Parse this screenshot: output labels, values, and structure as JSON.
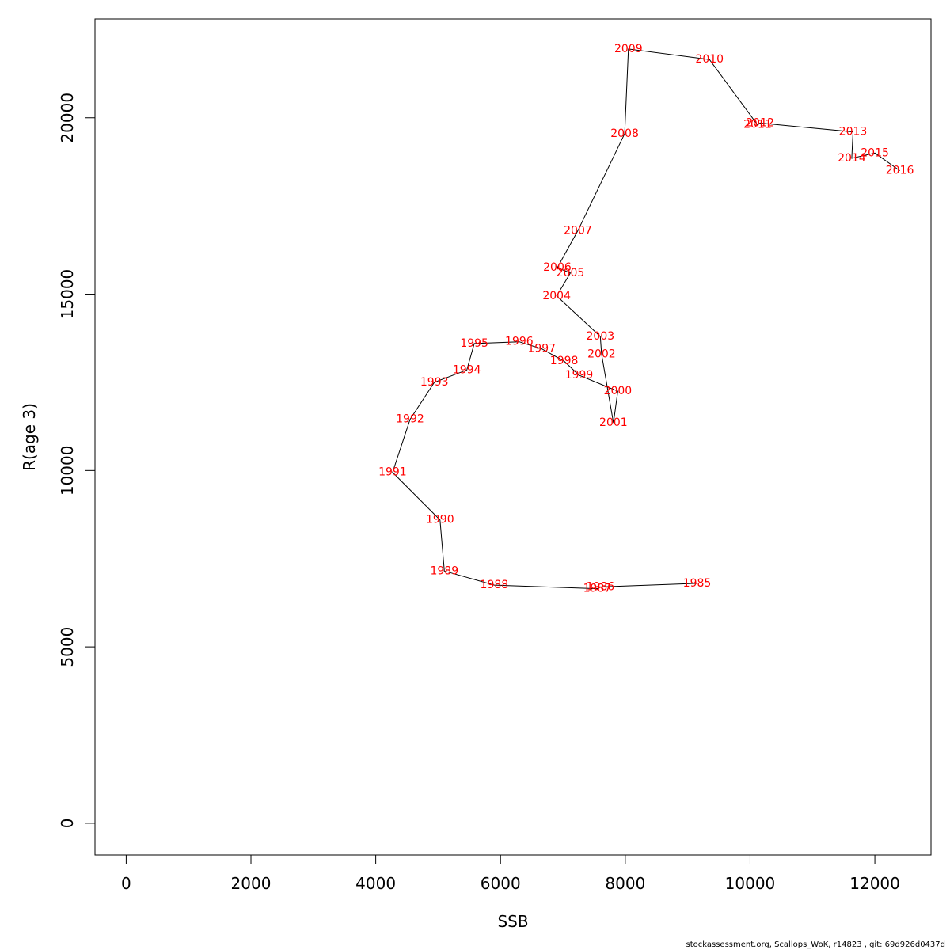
{
  "chart_data": {
    "type": "line",
    "xlabel": "SSB",
    "ylabel": "R(age 3)",
    "xlim": [
      -500,
      12900
    ],
    "ylim": [
      -900,
      22800
    ],
    "x_ticks": [
      0,
      2000,
      4000,
      6000,
      8000,
      10000,
      12000
    ],
    "y_ticks": [
      0,
      5000,
      10000,
      15000,
      20000
    ],
    "grid": false,
    "label_color": "#ff0000",
    "line_color": "#000000",
    "points": [
      {
        "year": "1985",
        "x": 9150,
        "y": 6800
      },
      {
        "year": "1986",
        "x": 7600,
        "y": 6700
      },
      {
        "year": "1987",
        "x": 7550,
        "y": 6650
      },
      {
        "year": "1988",
        "x": 5900,
        "y": 6750
      },
      {
        "year": "1989",
        "x": 5100,
        "y": 7150
      },
      {
        "year": "1990",
        "x": 5030,
        "y": 8600
      },
      {
        "year": "1991",
        "x": 4270,
        "y": 9950
      },
      {
        "year": "1992",
        "x": 4550,
        "y": 11450
      },
      {
        "year": "1993",
        "x": 4940,
        "y": 12500
      },
      {
        "year": "1994",
        "x": 5460,
        "y": 12850
      },
      {
        "year": "1995",
        "x": 5580,
        "y": 13600
      },
      {
        "year": "1996",
        "x": 6300,
        "y": 13650
      },
      {
        "year": "1997",
        "x": 6660,
        "y": 13450
      },
      {
        "year": "1998",
        "x": 7020,
        "y": 13100
      },
      {
        "year": "1999",
        "x": 7260,
        "y": 12700
      },
      {
        "year": "2000",
        "x": 7880,
        "y": 12250
      },
      {
        "year": "2001",
        "x": 7810,
        "y": 11350
      },
      {
        "year": "2002",
        "x": 7620,
        "y": 13300
      },
      {
        "year": "2003",
        "x": 7600,
        "y": 13800
      },
      {
        "year": "2004",
        "x": 6900,
        "y": 14950
      },
      {
        "year": "2005",
        "x": 7120,
        "y": 15600
      },
      {
        "year": "2006",
        "x": 6910,
        "y": 15750
      },
      {
        "year": "2007",
        "x": 7240,
        "y": 16800
      },
      {
        "year": "2008",
        "x": 7990,
        "y": 19550
      },
      {
        "year": "2009",
        "x": 8050,
        "y": 21950
      },
      {
        "year": "2010",
        "x": 9350,
        "y": 21650
      },
      {
        "year": "2011",
        "x": 10120,
        "y": 19800
      },
      {
        "year": "2012",
        "x": 10160,
        "y": 19850
      },
      {
        "year": "2013",
        "x": 11650,
        "y": 19600
      },
      {
        "year": "2014",
        "x": 11630,
        "y": 18850
      },
      {
        "year": "2015",
        "x": 12000,
        "y": 19000
      },
      {
        "year": "2016",
        "x": 12400,
        "y": 18500
      }
    ]
  },
  "footer": {
    "note": "stockassessment.org, Scallops_WoK, r14823 , git: 69d926d0437d"
  }
}
